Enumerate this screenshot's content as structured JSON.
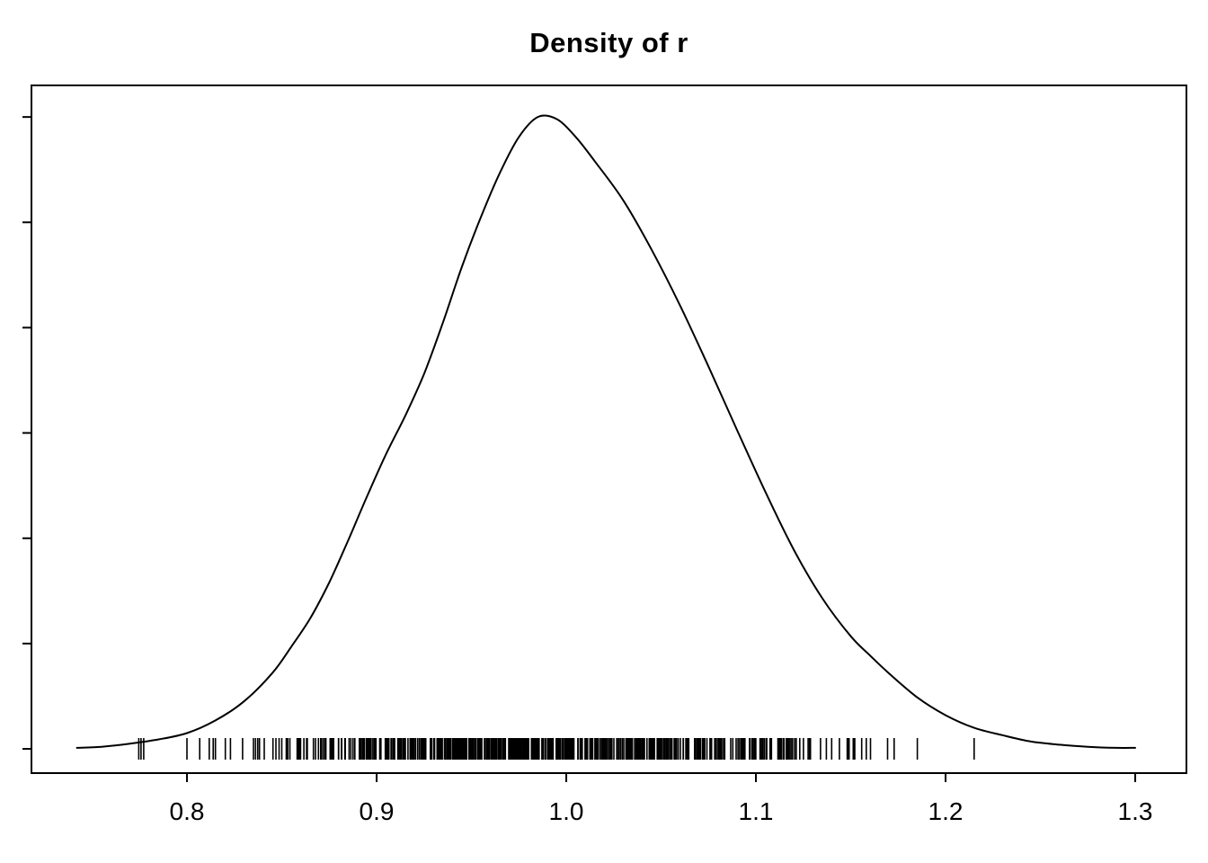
{
  "chart_data": {
    "type": "line",
    "title": "Density of r",
    "xlabel": "",
    "ylabel": "",
    "grid": false,
    "legend": null,
    "xlim": [
      0.718,
      1.327
    ],
    "ylim": [
      -0.23,
      6.3
    ],
    "x_ticks": [
      0.8,
      0.9,
      1.0,
      1.1,
      1.2,
      1.3
    ],
    "x_tick_labels": [
      "0.8",
      "0.9",
      "1.0",
      "1.1",
      "1.2",
      "1.3"
    ],
    "y_ticks": [
      0,
      1,
      2,
      3,
      4,
      5,
      6
    ],
    "y_tick_labels": [],
    "curve": {
      "x": [
        0.742,
        0.755,
        0.77,
        0.785,
        0.8,
        0.815,
        0.83,
        0.845,
        0.855,
        0.865,
        0.875,
        0.885,
        0.895,
        0.905,
        0.915,
        0.925,
        0.935,
        0.945,
        0.955,
        0.965,
        0.975,
        0.985,
        0.995,
        1.005,
        1.015,
        1.03,
        1.045,
        1.06,
        1.075,
        1.09,
        1.105,
        1.12,
        1.135,
        1.15,
        1.16,
        1.17,
        1.185,
        1.2,
        1.215,
        1.23,
        1.245,
        1.26,
        1.275,
        1.29,
        1.3
      ],
      "y": [
        0.01,
        0.02,
        0.05,
        0.09,
        0.15,
        0.27,
        0.45,
        0.72,
        0.97,
        1.24,
        1.58,
        1.98,
        2.4,
        2.8,
        3.16,
        3.56,
        4.05,
        4.58,
        5.05,
        5.47,
        5.81,
        6.0,
        5.98,
        5.81,
        5.58,
        5.21,
        4.74,
        4.21,
        3.63,
        3.03,
        2.44,
        1.89,
        1.43,
        1.07,
        0.89,
        0.72,
        0.49,
        0.32,
        0.2,
        0.13,
        0.07,
        0.04,
        0.02,
        0.01,
        0.01
      ]
    },
    "rug": {
      "count": 650,
      "mean": 0.985,
      "sd": 0.075,
      "min": 0.77,
      "max": 1.27,
      "seed": 20
    }
  },
  "colors": {
    "line": "#000000",
    "text": "#000000",
    "background": "#ffffff"
  }
}
